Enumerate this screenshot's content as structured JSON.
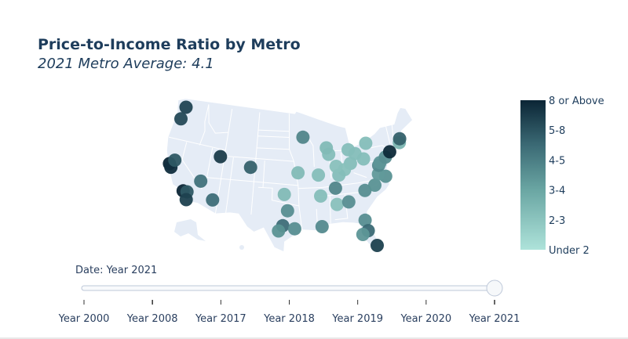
{
  "title": "Price-to-Income Ratio by Metro",
  "subtitle": "2021 Metro Average: 4.1",
  "chart_data": {
    "type": "scatter-geo",
    "scope": "usa",
    "projection": "albers usa",
    "colorscale": [
      "#aee3da",
      "#0b2535"
    ],
    "colorbar": {
      "tickvals": [
        0,
        1,
        2,
        3,
        4,
        5
      ],
      "ticktext": [
        "Under 2",
        "2-3",
        "3-4",
        "4-5",
        "5-8",
        "8 or Above"
      ]
    },
    "points": [
      {
        "lon": -122.3,
        "lat": 47.6,
        "value": 4.3
      },
      {
        "lon": -122.7,
        "lat": 45.5,
        "value": 4.2
      },
      {
        "lon": -122.4,
        "lat": 37.8,
        "value": 5.0
      },
      {
        "lon": -121.9,
        "lat": 37.3,
        "value": 4.8
      },
      {
        "lon": -121.5,
        "lat": 38.6,
        "value": 3.9
      },
      {
        "lon": -118.2,
        "lat": 34.0,
        "value": 5.0
      },
      {
        "lon": -117.4,
        "lat": 34.0,
        "value": 3.9
      },
      {
        "lon": -117.2,
        "lat": 32.7,
        "value": 4.4
      },
      {
        "lon": -115.1,
        "lat": 36.2,
        "value": 3.3
      },
      {
        "lon": -112.0,
        "lat": 33.5,
        "value": 3.4
      },
      {
        "lon": -111.9,
        "lat": 40.8,
        "value": 4.5
      },
      {
        "lon": -105.0,
        "lat": 39.7,
        "value": 3.7
      },
      {
        "lon": -93.3,
        "lat": 45.0,
        "value": 2.8
      },
      {
        "lon": -94.6,
        "lat": 39.1,
        "value": 1.3
      },
      {
        "lon": -90.2,
        "lat": 38.6,
        "value": 1.2
      },
      {
        "lon": -97.5,
        "lat": 35.5,
        "value": 1.3
      },
      {
        "lon": -96.8,
        "lat": 32.8,
        "value": 2.6
      },
      {
        "lon": -97.7,
        "lat": 30.3,
        "value": 3.4
      },
      {
        "lon": -98.5,
        "lat": 29.4,
        "value": 2.5
      },
      {
        "lon": -95.4,
        "lat": 29.8,
        "value": 2.6
      },
      {
        "lon": -90.0,
        "lat": 35.1,
        "value": 1.2
      },
      {
        "lon": -90.1,
        "lat": 30.0,
        "value": 2.7
      },
      {
        "lon": -86.8,
        "lat": 36.2,
        "value": 2.8
      },
      {
        "lon": -86.8,
        "lat": 33.5,
        "value": 1.1
      },
      {
        "lon": -84.4,
        "lat": 33.7,
        "value": 2.6
      },
      {
        "lon": -81.7,
        "lat": 30.3,
        "value": 2.6
      },
      {
        "lon": -81.4,
        "lat": 28.5,
        "value": 3.5
      },
      {
        "lon": -82.5,
        "lat": 28.0,
        "value": 2.4
      },
      {
        "lon": -80.2,
        "lat": 25.8,
        "value": 4.4
      },
      {
        "lon": -80.8,
        "lat": 35.2,
        "value": 2.6
      },
      {
        "lon": -78.6,
        "lat": 35.8,
        "value": 2.5
      },
      {
        "lon": -76.0,
        "lat": 36.9,
        "value": 2.5
      },
      {
        "lon": -77.4,
        "lat": 37.5,
        "value": 2.3
      },
      {
        "lon": -77.0,
        "lat": 38.9,
        "value": 2.7
      },
      {
        "lon": -76.6,
        "lat": 39.3,
        "value": 2.4
      },
      {
        "lon": -75.2,
        "lat": 40.0,
        "value": 2.6
      },
      {
        "lon": -74.0,
        "lat": 40.7,
        "value": 4.9
      },
      {
        "lon": -71.4,
        "lat": 41.8,
        "value": 1.5
      },
      {
        "lon": -71.1,
        "lat": 42.4,
        "value": 3.7
      },
      {
        "lon": -78.9,
        "lat": 42.9,
        "value": 1.2
      },
      {
        "lon": -80.0,
        "lat": 40.4,
        "value": 1.2
      },
      {
        "lon": -81.7,
        "lat": 41.5,
        "value": 1.2
      },
      {
        "lon": -83.0,
        "lat": 40.0,
        "value": 1.2
      },
      {
        "lon": -84.5,
        "lat": 39.1,
        "value": 1.1
      },
      {
        "lon": -85.8,
        "lat": 38.3,
        "value": 1.2
      },
      {
        "lon": -86.2,
        "lat": 39.8,
        "value": 1.1
      },
      {
        "lon": -83.1,
        "lat": 42.3,
        "value": 1.2
      },
      {
        "lon": -87.6,
        "lat": 41.9,
        "value": 1.2
      },
      {
        "lon": -88.0,
        "lat": 43.0,
        "value": 1.3
      }
    ]
  },
  "slider": {
    "current_label": "Date: Year 2021",
    "steps": [
      "Year 2000",
      "Year 2008",
      "Year 2017",
      "Year 2018",
      "Year 2019",
      "Year 2020",
      "Year 2021"
    ],
    "active_index": 6
  }
}
